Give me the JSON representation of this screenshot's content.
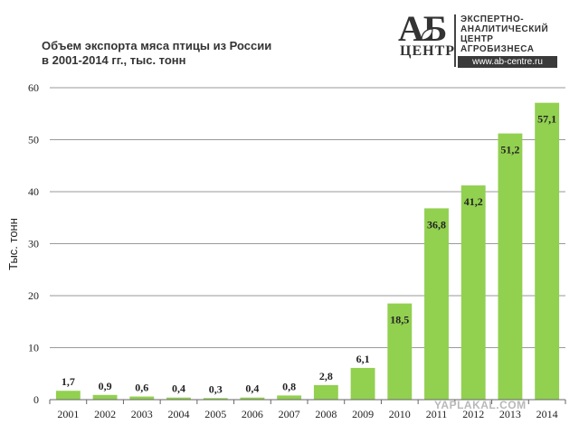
{
  "title_lines": [
    "Объем экспорта мяса птицы из России",
    "в 2001-2014 гг., тыс. тонн"
  ],
  "logo": {
    "mark_top": "АБ",
    "mark_bottom": "ЦЕНТР",
    "text_lines": [
      "ЭКСПЕРТНО-",
      "АНАЛИТИЧЕСКИЙ",
      "ЦЕНТР",
      "АГРОБИЗНЕСА"
    ],
    "url": "www.ab-centre.ru"
  },
  "watermark": "YAPLAKAL.COM",
  "colors": {
    "bar": "#92d050",
    "grid": "#9a9a9a",
    "axis": "#666666"
  },
  "chart_data": {
    "type": "bar",
    "title": "Объем экспорта мяса птицы из России в 2001-2014 гг., тыс. тонн",
    "xlabel": "",
    "ylabel": "Тыс. тонн",
    "categories": [
      "2001",
      "2002",
      "2003",
      "2004",
      "2005",
      "2006",
      "2007",
      "2008",
      "2009",
      "2010",
      "2011",
      "2012",
      "2013",
      "2014"
    ],
    "values": [
      1.7,
      0.9,
      0.6,
      0.4,
      0.3,
      0.4,
      0.8,
      2.8,
      6.1,
      18.5,
      36.8,
      41.2,
      51.2,
      57.1
    ],
    "data_labels": [
      "1,7",
      "0,9",
      "0,6",
      "0,4",
      "0,3",
      "0,4",
      "0,8",
      "2,8",
      "6,1",
      "18,5",
      "36,8",
      "41,2",
      "51,2",
      "57,1"
    ],
    "ylim": [
      0,
      60
    ],
    "yticks": [
      0,
      10,
      20,
      30,
      40,
      50,
      60
    ],
    "grid": true,
    "legend": "none"
  }
}
